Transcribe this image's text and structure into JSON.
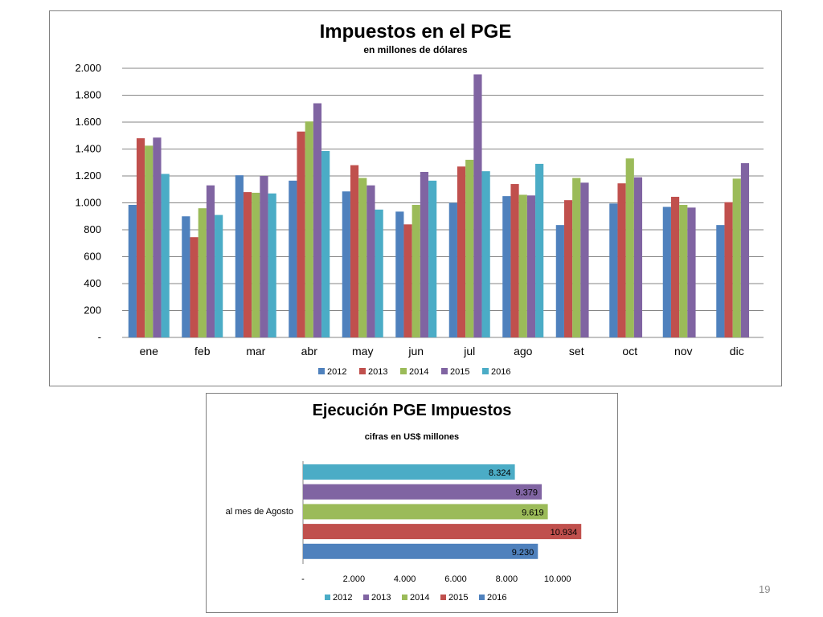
{
  "page_number": "19",
  "chart_data": [
    {
      "type": "bar",
      "title": "Impuestos en el PGE",
      "subtitle": "en millones de dólares",
      "categories": [
        "ene",
        "feb",
        "mar",
        "abr",
        "may",
        "jun",
        "jul",
        "ago",
        "set",
        "oct",
        "nov",
        "dic"
      ],
      "ylim": [
        0,
        2000
      ],
      "yticks": [
        "-",
        "200",
        "400",
        "600",
        "800",
        "1.000",
        "1.200",
        "1.400",
        "1.600",
        "1.800",
        "2.000"
      ],
      "grid": true,
      "legend_position": "bottom",
      "series": [
        {
          "name": "2012",
          "color": "#4F81BD",
          "values": [
            985,
            900,
            1205,
            1165,
            1085,
            935,
            1000,
            1050,
            835,
            995,
            970,
            835
          ]
        },
        {
          "name": "2013",
          "color": "#C0504D",
          "values": [
            1480,
            745,
            1080,
            1530,
            1280,
            840,
            1270,
            1140,
            1020,
            1145,
            1045,
            1005
          ]
        },
        {
          "name": "2014",
          "color": "#9BBB59",
          "values": [
            1425,
            960,
            1075,
            1605,
            1185,
            985,
            1320,
            1060,
            1185,
            1330,
            985,
            1180
          ]
        },
        {
          "name": "2015",
          "color": "#8064A2",
          "values": [
            1485,
            1130,
            1200,
            1740,
            1130,
            1230,
            1955,
            1055,
            1150,
            1190,
            965,
            1295
          ]
        },
        {
          "name": "2016",
          "color": "#4BACC6",
          "values": [
            1215,
            910,
            1070,
            1385,
            950,
            1165,
            1235,
            1290,
            null,
            null,
            null,
            null
          ]
        }
      ]
    },
    {
      "type": "bar",
      "orientation": "horizontal",
      "title": "Ejecución PGE Impuestos",
      "subtitle": "cifras en US$ millones",
      "category_label": "al mes de Agosto",
      "xlim": [
        0,
        12000
      ],
      "xticks": [
        "-",
        "2.000",
        "4.000",
        "6.000",
        "8.000",
        "10.000"
      ],
      "legend_position": "bottom",
      "series": [
        {
          "name": "2012",
          "color": "#4BACC6",
          "value": 8324,
          "label": "8.324"
        },
        {
          "name": "2013",
          "color": "#8064A2",
          "value": 9379,
          "label": "9.379"
        },
        {
          "name": "2014",
          "color": "#9BBB59",
          "value": 9619,
          "label": "9.619"
        },
        {
          "name": "2015",
          "color": "#C0504D",
          "value": 10934,
          "label": "10.934"
        },
        {
          "name": "2016",
          "color": "#4F81BD",
          "value": 9230,
          "label": "9.230"
        }
      ]
    }
  ]
}
